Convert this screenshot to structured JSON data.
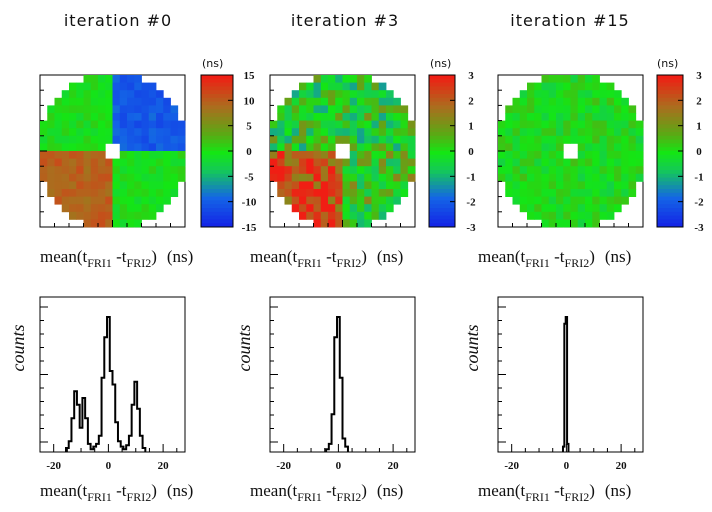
{
  "chart_data": [
    {
      "type": "heatmap",
      "title": "iteration #0",
      "unit": "(ns)",
      "colorbar_ticks": [
        15,
        10,
        5,
        0,
        -5,
        -10,
        -15
      ],
      "zlim": [
        -15,
        15
      ],
      "grid": [
        20,
        20
      ],
      "pattern": {
        "top_left": 0,
        "top_right": -10,
        "bottom_left": 10,
        "bottom_right": 0,
        "noise": 1.5
      },
      "xlabel": {
        "main": "mean(t",
        "sub1": "FRI1",
        "mid": " -t",
        "sub2": "FRI2",
        "end": ")",
        "unit": "(ns)"
      }
    },
    {
      "type": "heatmap",
      "title": "iteration #3",
      "unit": "(ns)",
      "colorbar_ticks": [
        3,
        2,
        1,
        0,
        -1,
        -2,
        -3
      ],
      "zlim": [
        -3,
        3
      ],
      "grid": [
        20,
        20
      ],
      "pattern": {
        "top_left": 0,
        "top_right": 0,
        "bottom_left": 2.5,
        "bottom_right": 0.3,
        "noise": 1.2
      },
      "xlabel": {
        "main": "mean(t",
        "sub1": "FRI1",
        "mid": " -t",
        "sub2": "FRI2",
        "end": ")",
        "unit": "(ns)"
      }
    },
    {
      "type": "heatmap",
      "title": "iteration #15",
      "unit": "(ns)",
      "colorbar_ticks": [
        3,
        2,
        1,
        0,
        -1,
        -2,
        -3
      ],
      "zlim": [
        -3,
        3
      ],
      "grid": [
        20,
        20
      ],
      "pattern": {
        "top_left": 0,
        "top_right": 0,
        "bottom_left": 0,
        "bottom_right": 0,
        "noise": 0.5
      },
      "xlabel": {
        "main": "mean(t",
        "sub1": "FRI1",
        "mid": " -t",
        "sub2": "FRI2",
        "end": ")",
        "unit": "(ns)"
      }
    },
    {
      "type": "histogram",
      "ylabel": "counts",
      "xlim": [
        -25,
        28
      ],
      "xticks": [
        -20,
        0,
        20
      ],
      "ylim": [
        0,
        1
      ],
      "bin_width": 1,
      "bins": [
        [
          -15,
          0.03
        ],
        [
          -14,
          0.08
        ],
        [
          -13,
          0.25
        ],
        [
          -12,
          0.45
        ],
        [
          -11,
          0.35
        ],
        [
          -10,
          0.18
        ],
        [
          -9,
          0.4
        ],
        [
          -8,
          0.25
        ],
        [
          -7,
          0.06
        ],
        [
          -6,
          0.02
        ],
        [
          -5,
          0.04
        ],
        [
          -4,
          0.06
        ],
        [
          -3,
          0.12
        ],
        [
          -2,
          0.55
        ],
        [
          -1,
          0.85
        ],
        [
          0,
          1.0
        ],
        [
          1,
          0.6
        ],
        [
          2,
          0.5
        ],
        [
          3,
          0.22
        ],
        [
          4,
          0.08
        ],
        [
          5,
          0.04
        ],
        [
          6,
          0.02
        ],
        [
          7,
          0.05
        ],
        [
          8,
          0.12
        ],
        [
          9,
          0.35
        ],
        [
          10,
          0.52
        ],
        [
          11,
          0.32
        ],
        [
          12,
          0.12
        ],
        [
          13,
          0.03
        ]
      ],
      "xlabel": {
        "main": "mean(t",
        "sub1": "FRI1",
        "mid": " -t",
        "sub2": "FRI2",
        "end": ")",
        "unit": "(ns)"
      }
    },
    {
      "type": "histogram",
      "ylabel": "counts",
      "xlim": [
        -25,
        28
      ],
      "xticks": [
        -20,
        0,
        20
      ],
      "ylim": [
        0,
        1
      ],
      "bin_width": 1,
      "bins": [
        [
          -4,
          0.02
        ],
        [
          -3,
          0.06
        ],
        [
          -2,
          0.28
        ],
        [
          -1,
          0.85
        ],
        [
          0,
          1.0
        ],
        [
          1,
          0.55
        ],
        [
          2,
          0.1
        ],
        [
          3,
          0.04
        ]
      ],
      "xlabel": {
        "main": "mean(t",
        "sub1": "FRI1",
        "mid": " -t",
        "sub2": "FRI2",
        "end": ")",
        "unit": "(ns)"
      }
    },
    {
      "type": "histogram",
      "ylabel": "counts",
      "xlim": [
        -25,
        28
      ],
      "xticks": [
        -20,
        0,
        20
      ],
      "ylim": [
        0,
        1
      ],
      "bin_width": 1,
      "bins": [
        [
          -1,
          0.04
        ],
        [
          -0.5,
          0.95
        ],
        [
          0,
          1.0
        ],
        [
          0.5,
          0.06
        ]
      ],
      "xlabel": {
        "main": "mean(t",
        "sub1": "FRI1",
        "mid": " -t",
        "sub2": "FRI2",
        "end": ")",
        "unit": "(ns)"
      }
    }
  ]
}
